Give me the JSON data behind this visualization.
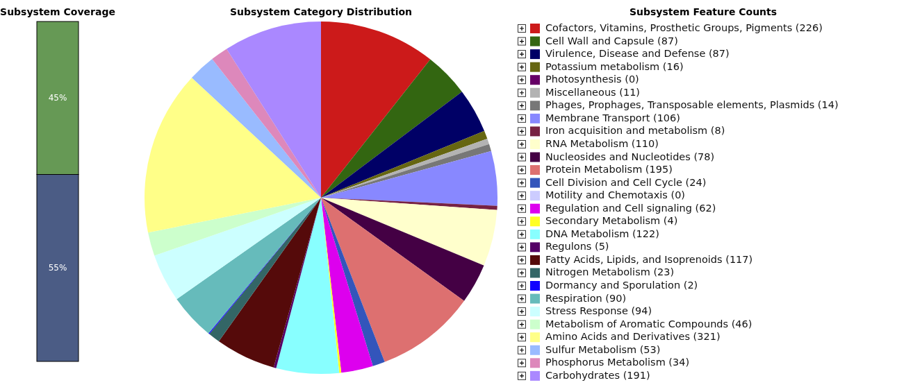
{
  "chart_data": [
    {
      "type": "bar",
      "title": "Subsystem Coverage",
      "stacked": true,
      "categories": [
        null
      ],
      "ylim": [
        0,
        100
      ],
      "series": [
        {
          "color": "#4b5c85",
          "values": [
            55
          ],
          "value_labels": [
            "55%"
          ]
        },
        {
          "color": "#669955",
          "values": [
            45
          ],
          "value_labels": [
            "45%"
          ]
        }
      ]
    },
    {
      "type": "pie",
      "title": "Subsystem Category Distribution",
      "legend_title": "Subsystem Feature Counts",
      "legend": "right",
      "categories": [
        "Cofactors, Vitamins, Prosthetic Groups, Pigments (226)",
        "Cell Wall and Capsule (87)",
        "Virulence, Disease and Defense (87)",
        "Potassium metabolism (16)",
        "Photosynthesis (0)",
        "Miscellaneous (11)",
        "Phages, Prophages, Transposable elements, Plasmids (14)",
        "Membrane Transport (106)",
        "Iron acquisition and metabolism (8)",
        "RNA Metabolism (110)",
        "Nucleosides and Nucleotides (78)",
        "Protein Metabolism (195)",
        "Cell Division and Cell Cycle (24)",
        "Motility and Chemotaxis (0)",
        "Regulation and Cell signaling (62)",
        "Secondary Metabolism (4)",
        "DNA Metabolism (122)",
        "Regulons (5)",
        "Fatty Acids, Lipids, and Isoprenoids (117)",
        "Nitrogen Metabolism (23)",
        "Dormancy and Sporulation (2)",
        "Respiration (90)",
        "Stress Response (94)",
        "Metabolism of Aromatic Compounds (46)",
        "Amino Acids and Derivatives (321)",
        "Sulfur Metabolism (53)",
        "Phosphorus Metabolism (34)",
        "Carbohydrates (191)"
      ],
      "values": [
        226,
        87,
        87,
        16,
        0,
        11,
        14,
        106,
        8,
        110,
        78,
        195,
        24,
        0,
        62,
        4,
        122,
        5,
        117,
        23,
        2,
        90,
        94,
        46,
        321,
        53,
        34,
        191
      ],
      "colors": [
        "#cc1a1a",
        "#336611",
        "#000066",
        "#666611",
        "#660066",
        "#b3b3b3",
        "#777777",
        "#8888ff",
        "#772244",
        "#ffffcc",
        "#440044",
        "#dd7070",
        "#3355bb",
        "#ccccff",
        "#dd00ee",
        "#ffff22",
        "#88ffff",
        "#550066",
        "#550a0a",
        "#336666",
        "#1100ff",
        "#66bbbb",
        "#ccffff",
        "#ccffcc",
        "#ffff88",
        "#99bbff",
        "#dd88bb",
        "#aa88ff"
      ]
    }
  ]
}
